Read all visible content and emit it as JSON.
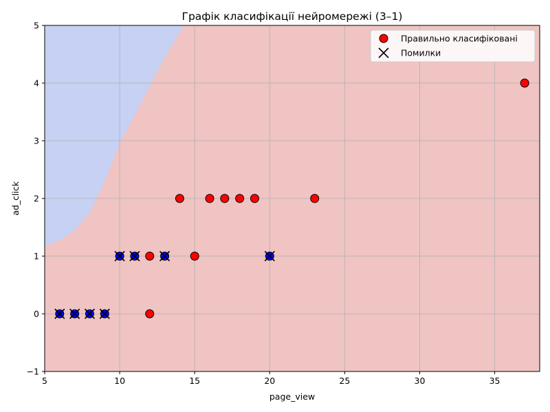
{
  "chart_data": {
    "type": "scatter",
    "title": "Графік класифікації нейромережі (3–1)",
    "xlabel": "page_view",
    "ylabel": "ad_click",
    "xlim": [
      5,
      38
    ],
    "ylim": [
      -1,
      5
    ],
    "xticks": [
      "5",
      "10",
      "15",
      "20",
      "25",
      "30",
      "35"
    ],
    "yticks": [
      "−1",
      "0",
      "1",
      "2",
      "3",
      "4",
      "5"
    ],
    "grid": true,
    "legend_position": "top-right",
    "legend": [
      "Правильно класифіковані",
      "Помилки"
    ],
    "regions": {
      "class_0_color": "#c6d1f3",
      "class_1_color": "#efc4c3",
      "boundary": [
        [
          5,
          1.17
        ],
        [
          6,
          1.28
        ],
        [
          7,
          1.45
        ],
        [
          8,
          1.75
        ],
        [
          9,
          2.3
        ],
        [
          10,
          2.95
        ],
        [
          11,
          3.45
        ],
        [
          12,
          3.95
        ],
        [
          13,
          4.45
        ],
        [
          14.3,
          5
        ]
      ]
    },
    "series": [
      {
        "name": "Правильно класифіковані",
        "marker": "circle",
        "points": [
          {
            "x": 37,
            "y": 4,
            "color": "#ff0000"
          },
          {
            "x": 14,
            "y": 2,
            "color": "#ff0000"
          },
          {
            "x": 16,
            "y": 2,
            "color": "#ff0000"
          },
          {
            "x": 17,
            "y": 2,
            "color": "#ff0000"
          },
          {
            "x": 18,
            "y": 2,
            "color": "#ff0000"
          },
          {
            "x": 19,
            "y": 2,
            "color": "#ff0000"
          },
          {
            "x": 23,
            "y": 2,
            "color": "#ff0000"
          },
          {
            "x": 12,
            "y": 1,
            "color": "#ff0000"
          },
          {
            "x": 15,
            "y": 1,
            "color": "#ff0000"
          },
          {
            "x": 12,
            "y": 0,
            "color": "#ff0000"
          },
          {
            "x": 10,
            "y": 1,
            "color": "#0000ff"
          },
          {
            "x": 11,
            "y": 1,
            "color": "#0000ff"
          },
          {
            "x": 13,
            "y": 1,
            "color": "#0000ff"
          },
          {
            "x": 20,
            "y": 1,
            "color": "#0000ff"
          },
          {
            "x": 6,
            "y": 0,
            "color": "#0000ff"
          },
          {
            "x": 7,
            "y": 0,
            "color": "#0000ff"
          },
          {
            "x": 8,
            "y": 0,
            "color": "#0000ff"
          },
          {
            "x": 9,
            "y": 0,
            "color": "#0000ff"
          }
        ]
      },
      {
        "name": "Помилки",
        "marker": "x",
        "points": [
          {
            "x": 10,
            "y": 1
          },
          {
            "x": 11,
            "y": 1
          },
          {
            "x": 13,
            "y": 1
          },
          {
            "x": 20,
            "y": 1
          },
          {
            "x": 6,
            "y": 0
          },
          {
            "x": 7,
            "y": 0
          },
          {
            "x": 8,
            "y": 0
          },
          {
            "x": 9,
            "y": 0
          }
        ]
      }
    ]
  }
}
